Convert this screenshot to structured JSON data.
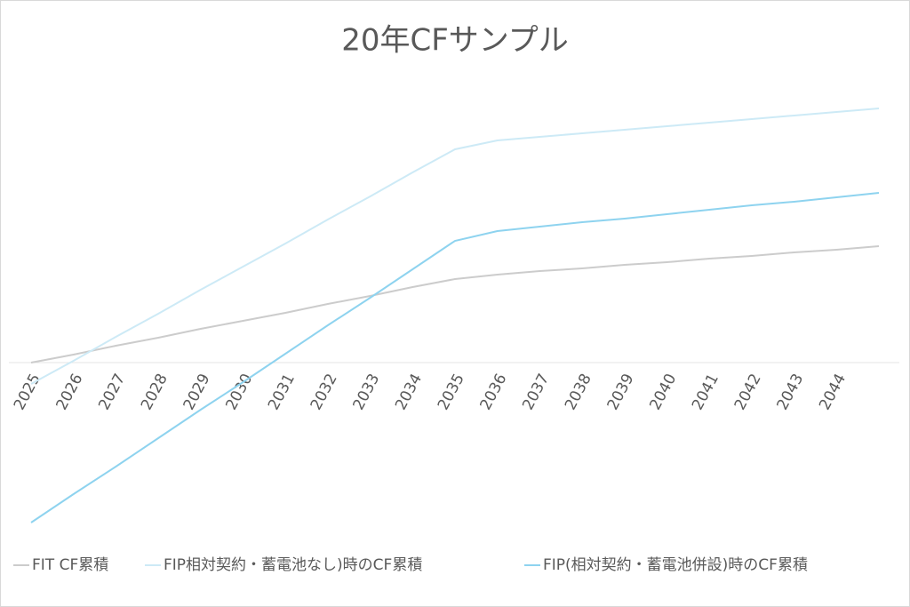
{
  "chart_data": {
    "type": "line",
    "title": "20年CFサンプル",
    "categories": [
      "2025",
      "2026",
      "2027",
      "2028",
      "2029",
      "2030",
      "2031",
      "2032",
      "2033",
      "2034",
      "2035",
      "2036",
      "2037",
      "2038",
      "2039",
      "2040",
      "2041",
      "2042",
      "2043",
      "2044",
      null
    ],
    "series": [
      {
        "name": "FIT CF累積",
        "color": "#cccccc",
        "values": [
          0,
          9,
          19,
          28,
          38,
          47,
          56,
          66,
          75,
          85,
          94,
          99,
          103,
          106,
          110,
          113,
          117,
          120,
          124,
          127,
          131
        ]
      },
      {
        "name": "FIP相対契約・蓄電池なし)時のCF累積",
        "color": "#cdeaf6",
        "values": [
          -24,
          2,
          29,
          55,
          82,
          108,
          134,
          161,
          187,
          214,
          240,
          250,
          254,
          258,
          262,
          266,
          270,
          274,
          278,
          282,
          286
        ]
      },
      {
        "name": "FIP(相対契約・蓄電池併設)時のCF累積",
        "color": "#8ed3ef",
        "values": [
          -180,
          -148,
          -117,
          -85,
          -53,
          -22,
          10,
          42,
          73,
          105,
          137,
          148,
          153,
          158,
          162,
          167,
          172,
          177,
          181,
          186,
          191
        ]
      }
    ],
    "ylim": [
      -190,
      310
    ]
  }
}
